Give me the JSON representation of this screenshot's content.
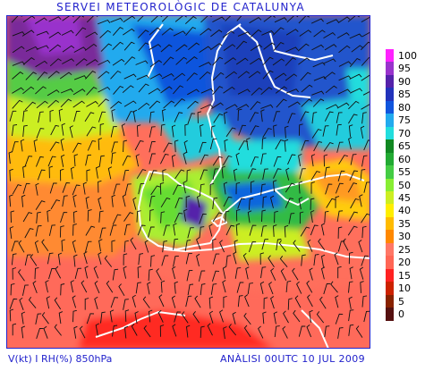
{
  "header": {
    "title": "SERVEI METEOROLÒGIC DE CATALUNYA"
  },
  "footer": {
    "variables": "V(kt) I RH(%) 850hPa",
    "analysis": "ANÀLISI 00UTC 10 JUL 2009"
  },
  "legend": {
    "unit": "RH (%)",
    "levels": [
      {
        "value": "100",
        "color": "#ff22ff"
      },
      {
        "value": "95",
        "color": "#9933cc"
      },
      {
        "value": "90",
        "color": "#5522aa"
      },
      {
        "value": "85",
        "color": "#2233bb"
      },
      {
        "value": "80",
        "color": "#1155dd"
      },
      {
        "value": "75",
        "color": "#22aaee"
      },
      {
        "value": "70",
        "color": "#22dddd"
      },
      {
        "value": "65",
        "color": "#118822"
      },
      {
        "value": "60",
        "color": "#22aa33"
      },
      {
        "value": "55",
        "color": "#44cc44"
      },
      {
        "value": "50",
        "color": "#88ee33"
      },
      {
        "value": "45",
        "color": "#ccee22"
      },
      {
        "value": "40",
        "color": "#ffee00"
      },
      {
        "value": "35",
        "color": "#ffbb00"
      },
      {
        "value": "30",
        "color": "#ff8800"
      },
      {
        "value": "25",
        "color": "#ff7766"
      },
      {
        "value": "20",
        "color": "#ff6655"
      },
      {
        "value": "15",
        "color": "#ff2222"
      },
      {
        "value": "10",
        "color": "#cc2200"
      },
      {
        "value": "5",
        "color": "#882200"
      },
      {
        "value": "0",
        "color": "#551111"
      }
    ]
  }
}
